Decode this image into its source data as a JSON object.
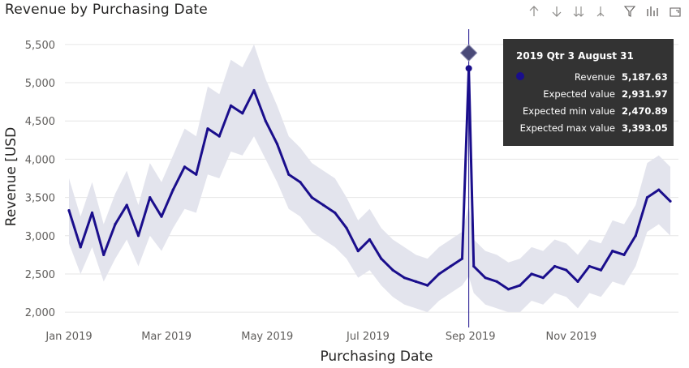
{
  "title": "Revenue by Purchasing Date",
  "toolbar": [
    {
      "name": "drill-up-icon"
    },
    {
      "name": "drill-down-icon"
    },
    {
      "name": "expand-next-level-icon"
    },
    {
      "name": "expand-hierarchy-icon"
    },
    {
      "name": "filter-icon"
    },
    {
      "name": "focus-mode-icon"
    },
    {
      "name": "more-options-icon"
    }
  ],
  "tooltip": {
    "header": "2019 Qtr 3 August 31",
    "rows": [
      {
        "label": "Revenue",
        "value": "5,187.63",
        "marker": true
      },
      {
        "label": "Expected value",
        "value": "2,931.97"
      },
      {
        "label": "Expected min value",
        "value": "2,470.89"
      },
      {
        "label": "Expected max value",
        "value": "3,393.05"
      }
    ]
  },
  "colors": {
    "line": "#1A0E8C",
    "band": "#E3E4ED",
    "grid": "#E6E6E6",
    "anomaly": "#4A4A78"
  },
  "chart_data": {
    "type": "line",
    "title": "Revenue by Purchasing Date",
    "xlabel": "Purchasing Date",
    "ylabel": "Revenue [USD",
    "ylim": [
      1800,
      5700
    ],
    "yticks": [
      "2,000",
      "2,500",
      "3,000",
      "3,500",
      "4,000",
      "4,500",
      "5,000",
      "5,500"
    ],
    "ytick_values": [
      2000,
      2500,
      3000,
      3500,
      4000,
      4500,
      5000,
      5500
    ],
    "xticks": [
      "Jan 2019",
      "Mar 2019",
      "May 2019",
      "Jul 2019",
      "Sep 2019",
      "Nov 2019"
    ],
    "xtick_dates": [
      "2019-01-01",
      "2019-03-01",
      "2019-05-01",
      "2019-07-01",
      "2019-09-01",
      "2019-11-01"
    ],
    "xlim": [
      "2019-01-01",
      "2019-12-31"
    ],
    "grid": true,
    "series": [
      {
        "x": [
          "2019-01-01",
          "2019-01-08",
          "2019-01-15",
          "2019-01-22",
          "2019-01-29",
          "2019-02-05",
          "2019-02-12",
          "2019-02-19",
          "2019-02-26",
          "2019-03-05",
          "2019-03-12",
          "2019-03-19",
          "2019-03-26",
          "2019-04-02",
          "2019-04-09",
          "2019-04-16",
          "2019-04-23",
          "2019-04-30",
          "2019-05-07",
          "2019-05-14",
          "2019-05-21",
          "2019-05-28",
          "2019-06-04",
          "2019-06-11",
          "2019-06-18",
          "2019-06-25",
          "2019-07-02",
          "2019-07-09",
          "2019-07-16",
          "2019-07-23",
          "2019-07-30",
          "2019-08-06",
          "2019-08-13",
          "2019-08-20",
          "2019-08-27",
          "2019-08-31",
          "2019-09-03",
          "2019-09-10",
          "2019-09-17",
          "2019-09-24",
          "2019-10-01",
          "2019-10-08",
          "2019-10-15",
          "2019-10-22",
          "2019-10-29",
          "2019-11-05",
          "2019-11-12",
          "2019-11-19",
          "2019-11-26",
          "2019-12-03",
          "2019-12-10",
          "2019-12-17",
          "2019-12-24",
          "2019-12-31"
        ],
        "values": [
          3330,
          2850,
          3300,
          2750,
          3150,
          3400,
          3000,
          3500,
          3250,
          3600,
          3900,
          3800,
          4400,
          4300,
          4700,
          4600,
          4900,
          4500,
          4200,
          3800,
          3700,
          3500,
          3400,
          3300,
          3100,
          2800,
          2950,
          2700,
          2550,
          2450,
          2400,
          2350,
          2500,
          2600,
          2700,
          5187.63,
          2600,
          2450,
          2400,
          2300,
          2350,
          2500,
          2450,
          2600,
          2550,
          2400,
          2600,
          2550,
          2800,
          2750,
          3000,
          3500,
          3600,
          3450
        ],
        "expected_min": [
          2900,
          2500,
          2850,
          2400,
          2700,
          2950,
          2600,
          3000,
          2800,
          3100,
          3350,
          3300,
          3800,
          3750,
          4100,
          4050,
          4300,
          4000,
          3700,
          3350,
          3250,
          3050,
          2950,
          2850,
          2700,
          2450,
          2550,
          2350,
          2200,
          2100,
          2050,
          2000,
          2150,
          2250,
          2350,
          2470.89,
          2250,
          2100,
          2050,
          2000,
          2000,
          2150,
          2100,
          2250,
          2200,
          2050,
          2250,
          2200,
          2400,
          2350,
          2600,
          3050,
          3150,
          3000
        ],
        "expected_max": [
          3750,
          3250,
          3700,
          3150,
          3550,
          3850,
          3400,
          3950,
          3700,
          4050,
          4400,
          4300,
          4950,
          4850,
          5300,
          5200,
          5500,
          5050,
          4700,
          4300,
          4150,
          3950,
          3850,
          3750,
          3500,
          3200,
          3350,
          3100,
          2950,
          2850,
          2750,
          2700,
          2850,
          2950,
          3050,
          3393.05,
          2950,
          2800,
          2750,
          2650,
          2700,
          2850,
          2800,
          2950,
          2900,
          2750,
          2950,
          2900,
          3200,
          3150,
          3400,
          3950,
          4050,
          3900
        ]
      }
    ],
    "anomaly": {
      "x": "2019-08-31",
      "y": 5390
    }
  }
}
